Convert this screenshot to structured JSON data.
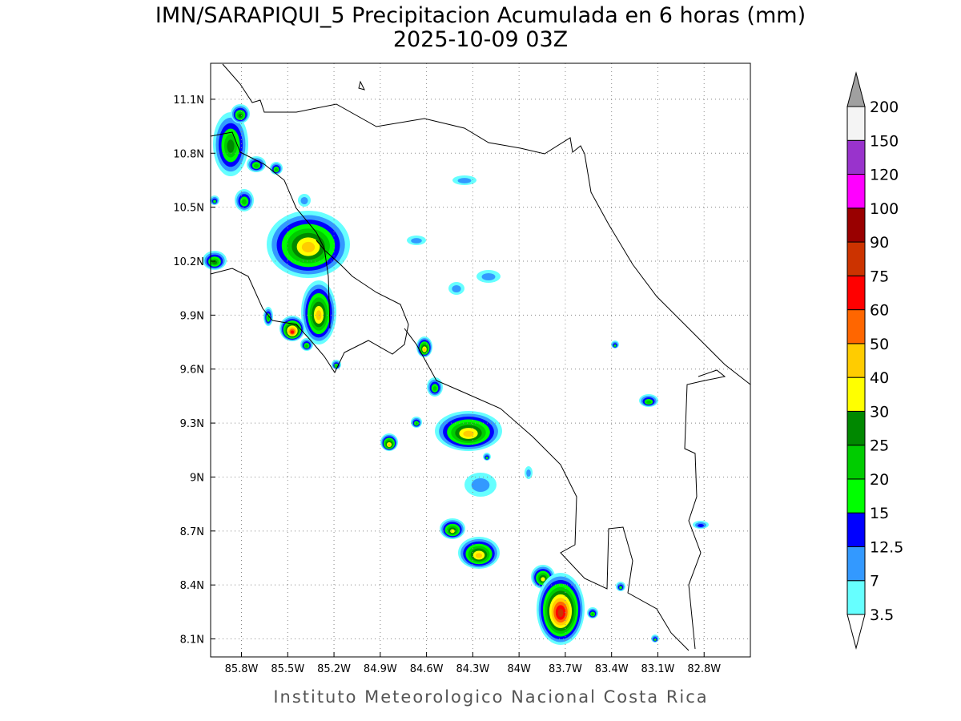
{
  "title": "IMN/SARAPIQUI_5 Precipitacion Acumulada en 6 horas (mm)",
  "subtitle": "2025-10-09 03Z",
  "footer": "Instituto Meteorologico Nacional Costa Rica",
  "map": {
    "lonlim": [
      -86,
      -82.5
    ],
    "latlim": [
      8,
      11.3
    ],
    "grid": true,
    "lon_ticks": [
      {
        "value": -85.8,
        "label": "85.8W"
      },
      {
        "value": -85.5,
        "label": "85.5W"
      },
      {
        "value": -85.2,
        "label": "85.2W"
      },
      {
        "value": -84.9,
        "label": "84.9W"
      },
      {
        "value": -84.6,
        "label": "84.6W"
      },
      {
        "value": -84.3,
        "label": "84.3W"
      },
      {
        "value": -84,
        "label": "84W"
      },
      {
        "value": -83.7,
        "label": "83.7W"
      },
      {
        "value": -83.4,
        "label": "83.4W"
      },
      {
        "value": -83.1,
        "label": "83.1W"
      },
      {
        "value": -82.8,
        "label": "82.8W"
      }
    ],
    "lat_ticks": [
      {
        "value": 11.1,
        "label": "11.1N"
      },
      {
        "value": 10.8,
        "label": "10.8N"
      },
      {
        "value": 10.5,
        "label": "10.5N"
      },
      {
        "value": 10.2,
        "label": "10.2N"
      },
      {
        "value": 9.9,
        "label": "9.9N"
      },
      {
        "value": 9.6,
        "label": "9.6N"
      },
      {
        "value": 9.3,
        "label": "9.3N"
      },
      {
        "value": 9,
        "label": "9N"
      },
      {
        "value": 8.7,
        "label": "8.7N"
      },
      {
        "value": 8.4,
        "label": "8.4N"
      },
      {
        "value": 8.1,
        "label": "8.1N"
      }
    ]
  },
  "colorbar": {
    "levels": [
      3.5,
      7,
      12.5,
      15,
      20,
      25,
      30,
      40,
      50,
      60,
      75,
      90,
      100,
      120,
      150,
      200
    ],
    "colors": [
      "#66ffff",
      "#3399ff",
      "#0000ff",
      "#00ff00",
      "#00cc00",
      "#008800",
      "#ffff00",
      "#ffcc00",
      "#ff6600",
      "#ff0000",
      "#cc3300",
      "#990000",
      "#ff00ff",
      "#9933cc",
      "#f4f4f4"
    ],
    "under_color": "#ffffff",
    "over_color": "#a0a0a0"
  }
}
